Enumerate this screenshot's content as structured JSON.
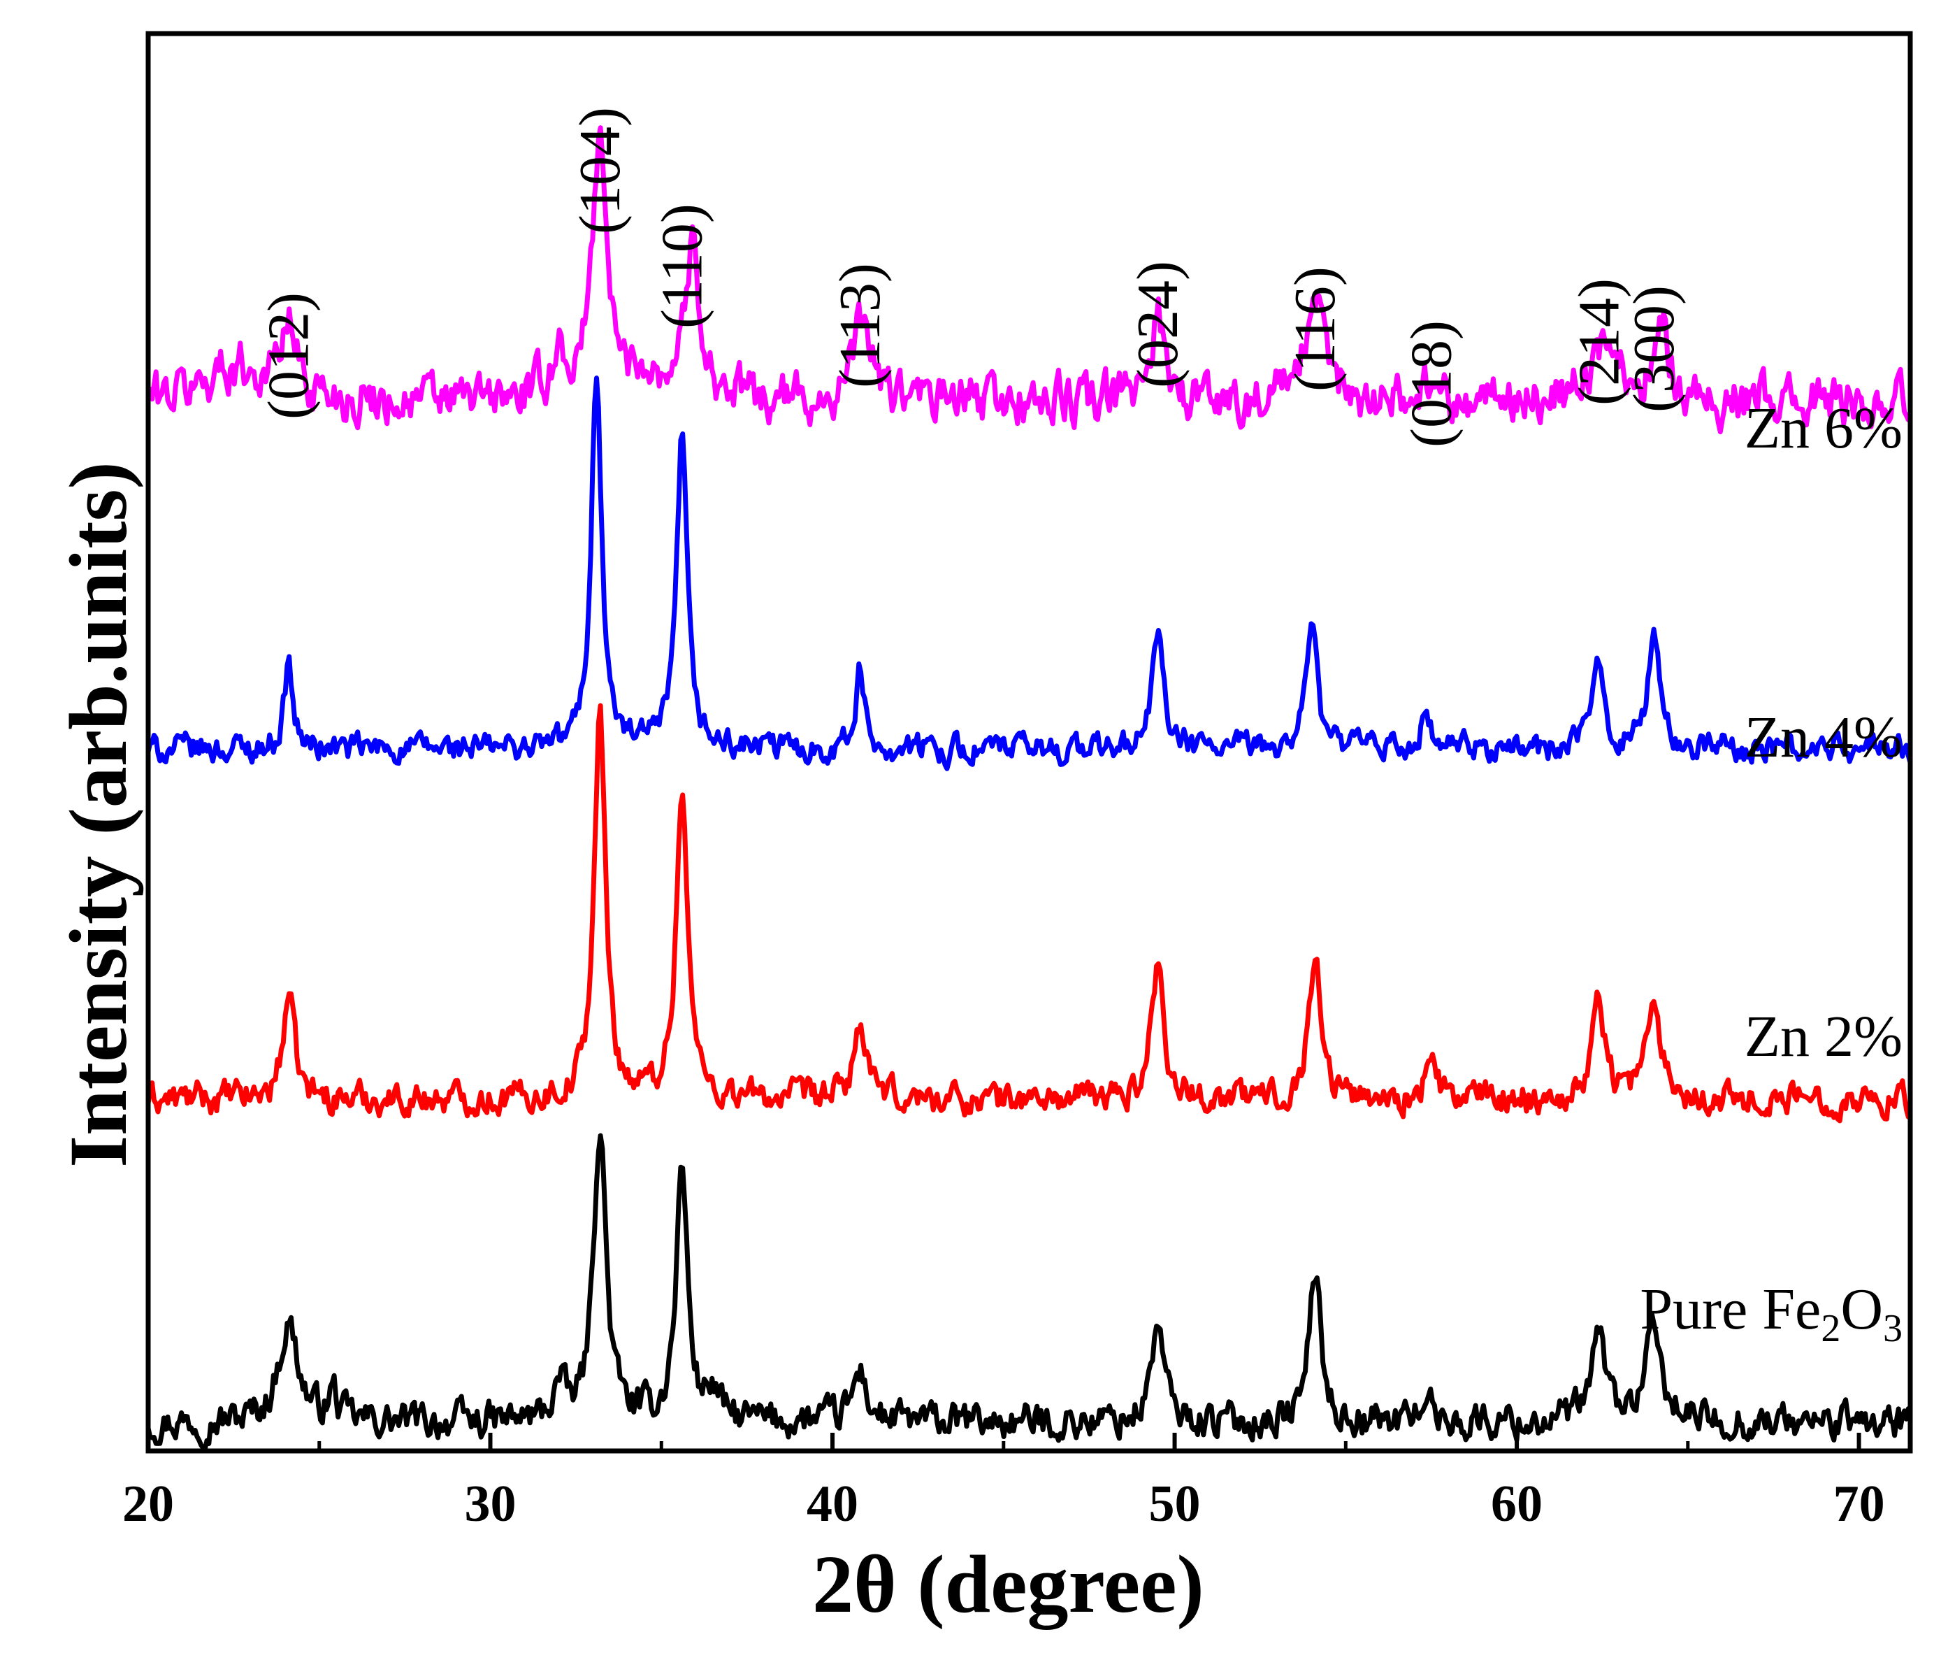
{
  "chart_data": {
    "type": "line",
    "title": "",
    "xlabel": "2θ (degree)",
    "ylabel": "Intensity (arb.units)",
    "xlim": [
      20,
      71.5
    ],
    "ylim": [
      0,
      1
    ],
    "x_ticks": [
      20,
      30,
      40,
      50,
      60,
      70
    ],
    "grid": false,
    "legend": "inline labels at right end of each trace",
    "peaks": [
      {
        "hkl": "(012)",
        "x": 24.1
      },
      {
        "hkl": "(104)",
        "x": 33.2
      },
      {
        "hkl": "(110)",
        "x": 35.6
      },
      {
        "hkl": "(113)",
        "x": 40.8
      },
      {
        "hkl": "(024)",
        "x": 49.5
      },
      {
        "hkl": "(116)",
        "x": 54.1
      },
      {
        "hkl": "(018)",
        "x": 57.5
      },
      {
        "hkl": "(214)",
        "x": 62.4
      },
      {
        "hkl": "(300)",
        "x": 64.0
      }
    ],
    "series": [
      {
        "name": "Pure Fe2O3",
        "label_main": "Pure Fe",
        "label_sub1": "2",
        "label_mid": "O",
        "label_sub2": "3",
        "color": "#000000",
        "baseline": 0.02,
        "noise": 0.01,
        "peaks": [
          {
            "x": 24.1,
            "h": 0.07,
            "w": 0.35
          },
          {
            "x": 25.4,
            "h": 0.02,
            "w": 0.15
          },
          {
            "x": 32.0,
            "h": 0.025,
            "w": 0.2
          },
          {
            "x": 33.2,
            "h": 0.21,
            "w": 0.22
          },
          {
            "x": 35.6,
            "h": 0.18,
            "w": 0.2
          },
          {
            "x": 36.5,
            "h": 0.02,
            "w": 0.2
          },
          {
            "x": 40.8,
            "h": 0.035,
            "w": 0.25
          },
          {
            "x": 49.5,
            "h": 0.07,
            "w": 0.22
          },
          {
            "x": 54.1,
            "h": 0.11,
            "w": 0.2
          },
          {
            "x": 57.3,
            "h": 0.02,
            "w": 0.2
          },
          {
            "x": 62.4,
            "h": 0.06,
            "w": 0.25
          },
          {
            "x": 64.0,
            "h": 0.06,
            "w": 0.3
          }
        ]
      },
      {
        "name": "Zn 2%",
        "label_main": "Zn 2%",
        "color": "#ff0000",
        "baseline": 0.248,
        "noise": 0.009,
        "peaks": [
          {
            "x": 24.1,
            "h": 0.075,
            "w": 0.2
          },
          {
            "x": 33.2,
            "h": 0.27,
            "w": 0.2
          },
          {
            "x": 35.6,
            "h": 0.22,
            "w": 0.2
          },
          {
            "x": 40.8,
            "h": 0.055,
            "w": 0.2
          },
          {
            "x": 49.5,
            "h": 0.095,
            "w": 0.22
          },
          {
            "x": 54.1,
            "h": 0.1,
            "w": 0.22
          },
          {
            "x": 57.5,
            "h": 0.025,
            "w": 0.2
          },
          {
            "x": 62.4,
            "h": 0.07,
            "w": 0.22
          },
          {
            "x": 64.0,
            "h": 0.06,
            "w": 0.3
          }
        ]
      },
      {
        "name": "Zn 4%",
        "label_main": "Zn 4%",
        "color": "#0000ff",
        "baseline": 0.495,
        "noise": 0.008,
        "peaks": [
          {
            "x": 24.1,
            "h": 0.06,
            "w": 0.15
          },
          {
            "x": 33.1,
            "h": 0.27,
            "w": 0.18
          },
          {
            "x": 35.6,
            "h": 0.22,
            "w": 0.18
          },
          {
            "x": 40.8,
            "h": 0.055,
            "w": 0.15
          },
          {
            "x": 49.5,
            "h": 0.085,
            "w": 0.18
          },
          {
            "x": 54.0,
            "h": 0.095,
            "w": 0.18
          },
          {
            "x": 57.3,
            "h": 0.018,
            "w": 0.2
          },
          {
            "x": 62.4,
            "h": 0.06,
            "w": 0.2
          },
          {
            "x": 64.0,
            "h": 0.075,
            "w": 0.22
          }
        ]
      },
      {
        "name": "Zn 6%",
        "label_main": "Zn 6%",
        "color": "#ff00ff",
        "baseline": 0.74,
        "noise": 0.014,
        "peaks": [
          {
            "x": 22.5,
            "h": 0.025,
            "w": 1.0
          },
          {
            "x": 24.1,
            "h": 0.05,
            "w": 0.3
          },
          {
            "x": 32.0,
            "h": 0.03,
            "w": 0.3
          },
          {
            "x": 33.2,
            "h": 0.19,
            "w": 0.25
          },
          {
            "x": 34.5,
            "h": 0.02,
            "w": 0.4
          },
          {
            "x": 35.9,
            "h": 0.105,
            "w": 0.3
          },
          {
            "x": 40.9,
            "h": 0.06,
            "w": 0.3
          },
          {
            "x": 49.5,
            "h": 0.065,
            "w": 0.25
          },
          {
            "x": 54.1,
            "h": 0.06,
            "w": 0.4
          },
          {
            "x": 57.5,
            "h": 0.015,
            "w": 0.3
          },
          {
            "x": 62.6,
            "h": 0.04,
            "w": 0.5
          },
          {
            "x": 64.2,
            "h": 0.06,
            "w": 0.25
          }
        ]
      }
    ]
  }
}
